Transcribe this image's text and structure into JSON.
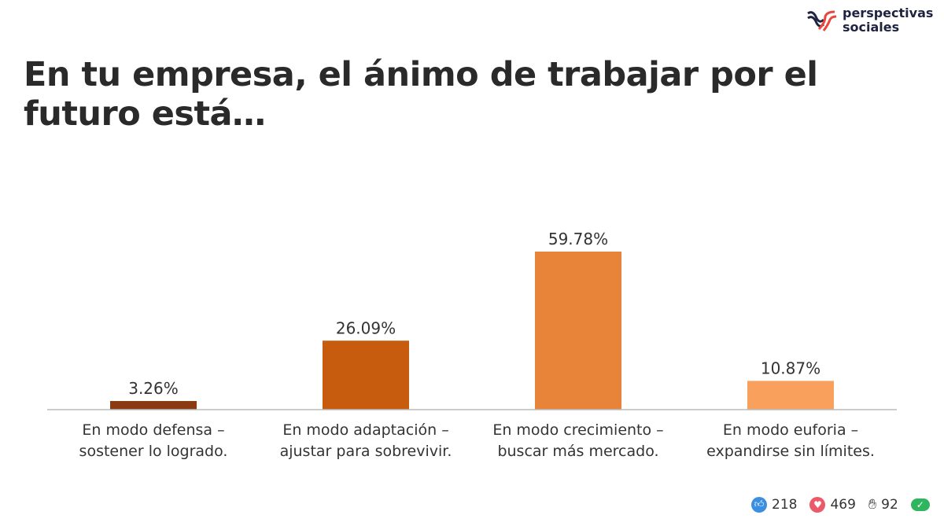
{
  "logo": {
    "line1": "perspectivas",
    "line2": "sociales"
  },
  "chart_data": {
    "type": "bar",
    "title": "En tu empresa, el ánimo de trabajar por el futuro está…",
    "categories": [
      [
        "En modo defensa –",
        "sostener lo logrado."
      ],
      [
        "En modo adaptación –",
        "ajustar para sobrevivir."
      ],
      [
        "En modo crecimiento –",
        "buscar más mercado."
      ],
      [
        "En modo euforia –",
        "expandirse sin límites."
      ]
    ],
    "values": [
      3.26,
      26.09,
      59.78,
      10.87
    ],
    "labels": [
      "3.26%",
      "26.09%",
      "59.78%",
      "10.87%"
    ],
    "colors": [
      "#8a3a10",
      "#c75b0e",
      "#e8843a",
      "#f9a05c"
    ],
    "ylim": [
      0,
      60
    ],
    "grid": false
  },
  "reactions": {
    "likes": "218",
    "hearts": "469",
    "hands": "92"
  }
}
